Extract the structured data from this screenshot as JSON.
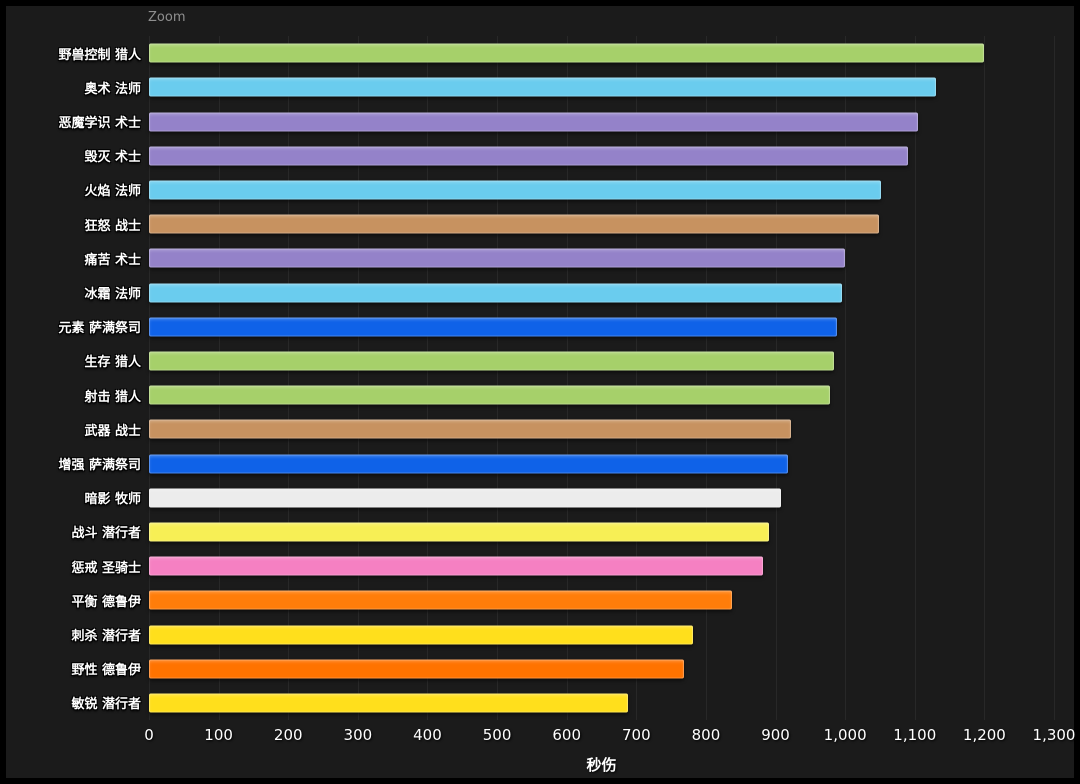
{
  "zoom_label": "Zoom",
  "chart_data": {
    "type": "bar",
    "orientation": "horizontal",
    "title": "",
    "xlabel": "秒伤",
    "xlim": [
      0,
      1300
    ],
    "xticks": [
      "0",
      "100",
      "200",
      "300",
      "400",
      "500",
      "600",
      "700",
      "800",
      "900",
      "1,000",
      "1,100",
      "1,200",
      "1,300"
    ],
    "grid": true,
    "legend": "none",
    "background": "#1b1b1b",
    "categories": [
      "野兽控制 猎人",
      "奥术 法师",
      "恶魔学识 术士",
      "毁灭 术士",
      "火焰 法师",
      "狂怒 战士",
      "痛苦 术士",
      "冰霜 法师",
      "元素 萨满祭司",
      "生存 猎人",
      "射击 猎人",
      "武器 战士",
      "增强 萨满祭司",
      "暗影 牧师",
      "战斗 潜行者",
      "惩戒 圣骑士",
      "平衡 德鲁伊",
      "刺杀 潜行者",
      "野性 德鲁伊",
      "敏锐 潜行者"
    ],
    "values": [
      1200,
      1130,
      1105,
      1090,
      1052,
      1048,
      1000,
      995,
      988,
      984,
      978,
      922,
      918,
      908,
      890,
      882,
      838,
      782,
      768,
      688
    ],
    "colors": [
      "#a6d06a",
      "#6accee",
      "#9482c9",
      "#9482c9",
      "#6accee",
      "#c79260",
      "#9482c9",
      "#6accee",
      "#0f62e8",
      "#a6d06a",
      "#a6d06a",
      "#c79260",
      "#0f62e8",
      "#ececec",
      "#f7ef55",
      "#f580c2",
      "#ff7d0a",
      "#ffdf1c",
      "#ff7300",
      "#ffdf1c"
    ]
  }
}
